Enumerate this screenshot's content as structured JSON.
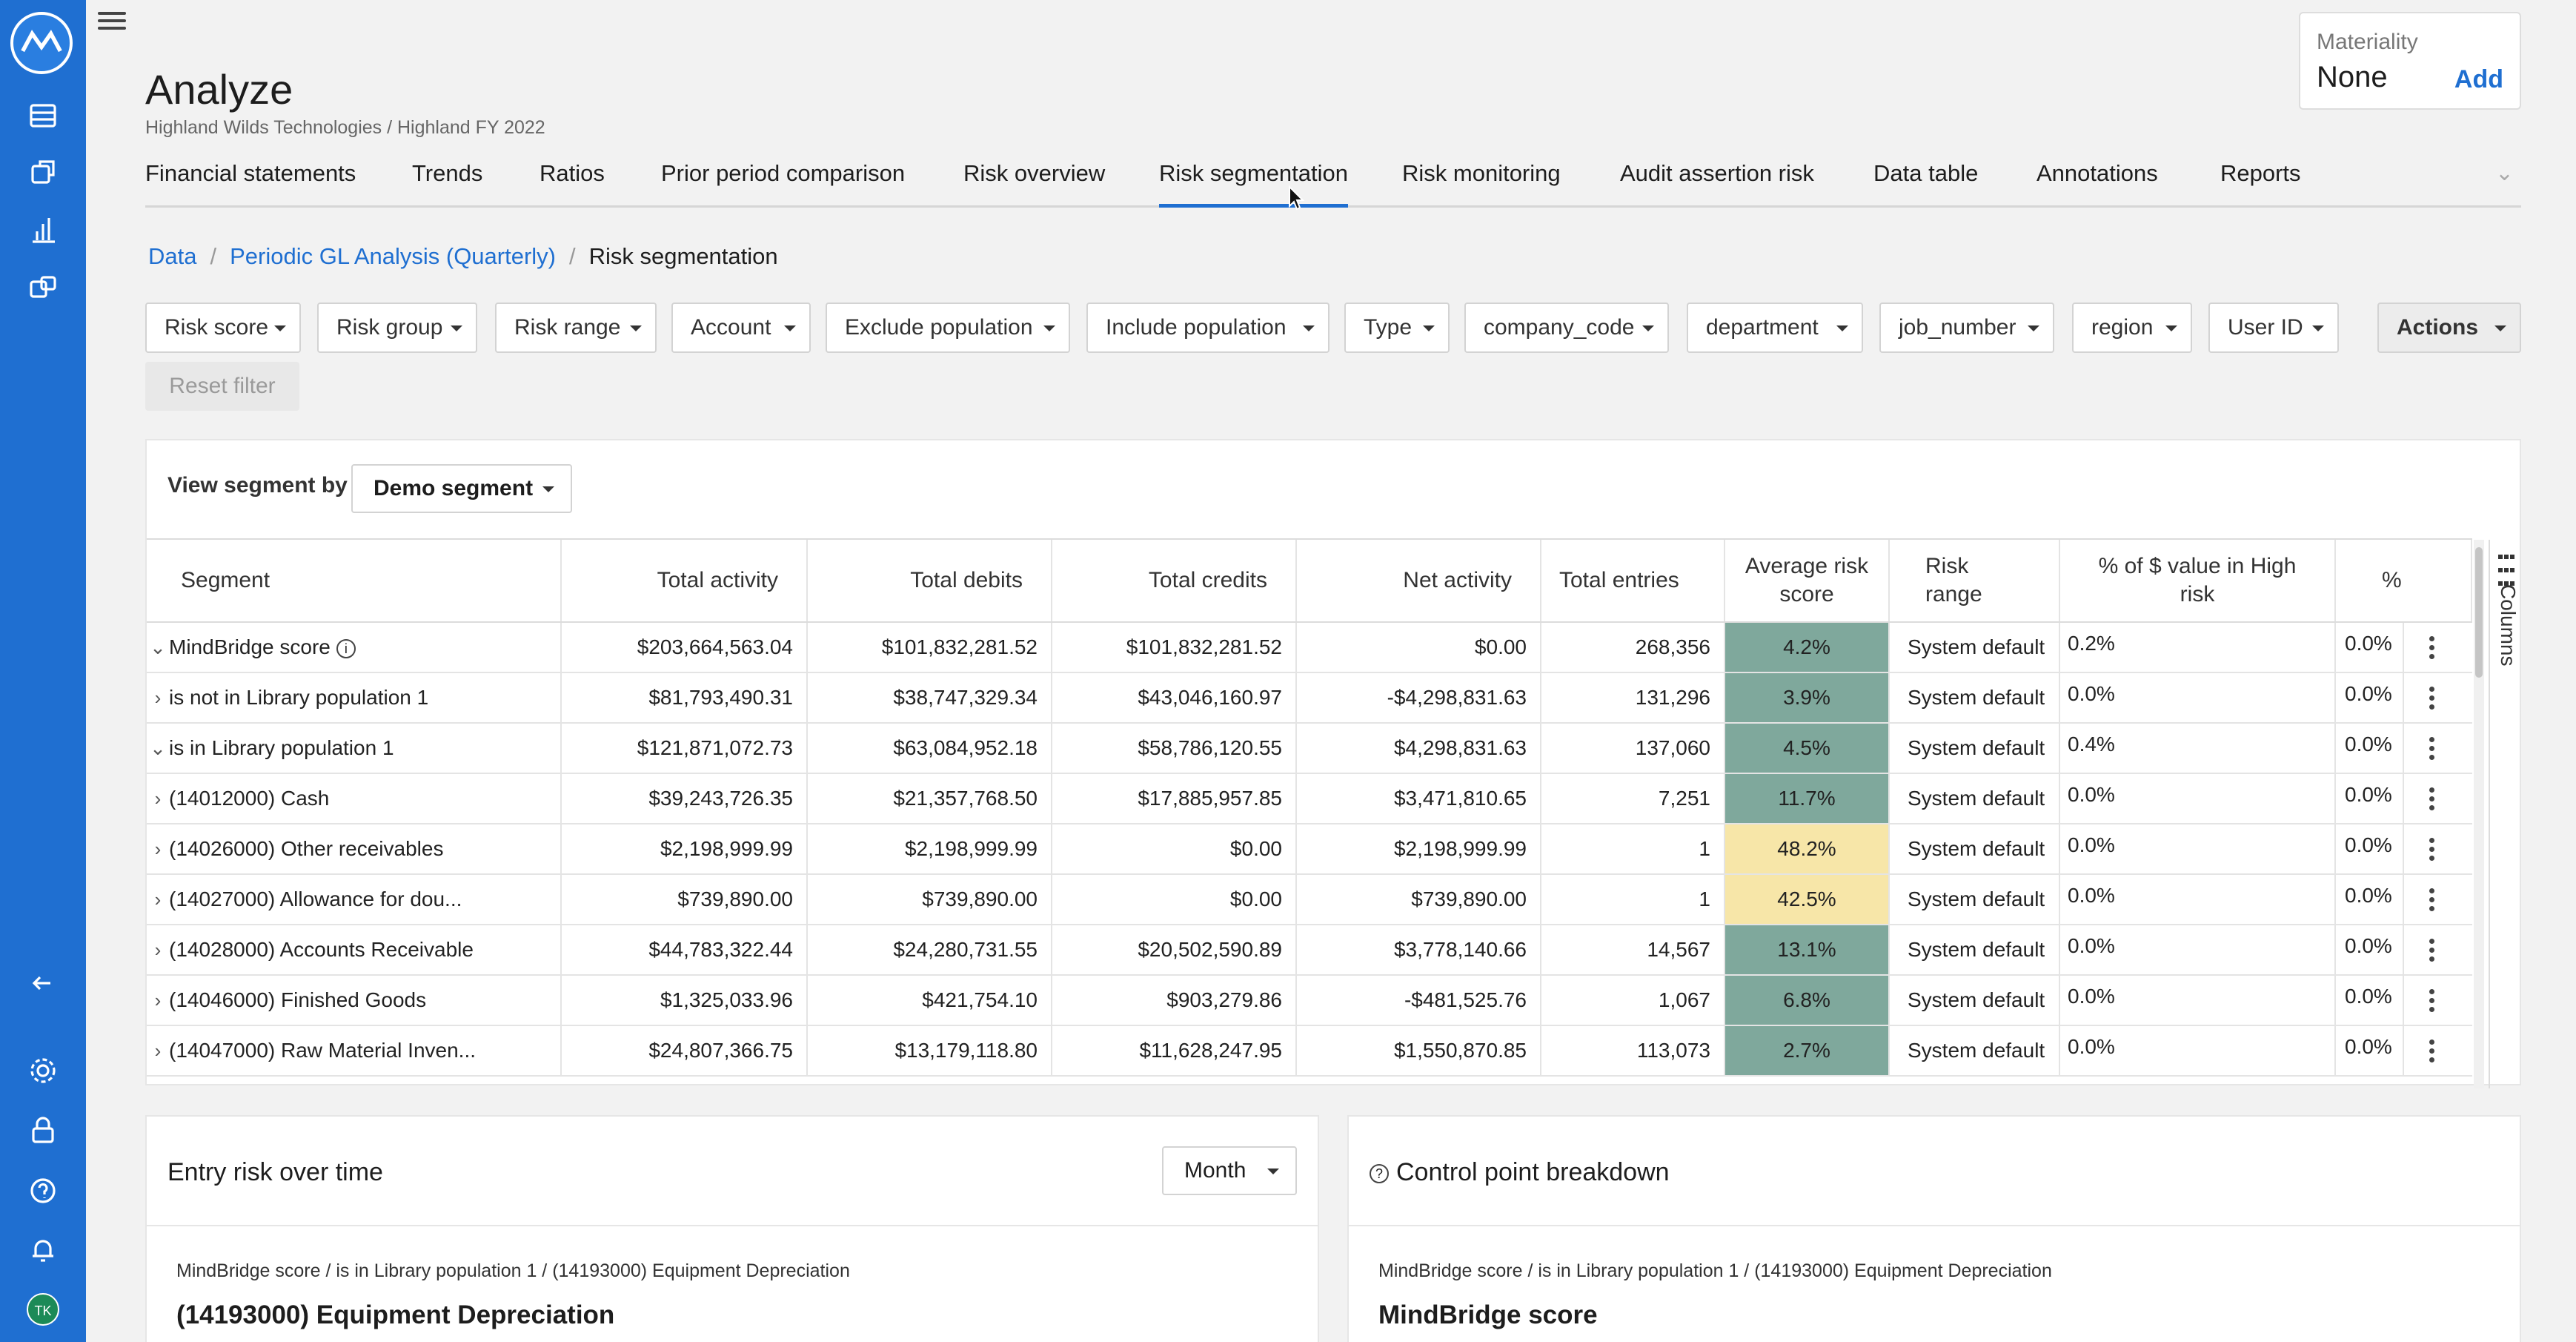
{
  "app": {
    "title": "Analyze",
    "subtitle": "Highland Wilds Technologies / Highland FY 2022",
    "accent_color": "#1f6fd1"
  },
  "rail": {
    "top_icons": [
      "database-icon",
      "box-icon",
      "bar-chart-icon",
      "workflow-icon"
    ],
    "bottom_icons": [
      "collapse-arrow-icon",
      "gear-icon",
      "lock-icon",
      "help-icon",
      "bell-icon"
    ],
    "avatar": "TK"
  },
  "materiality": {
    "label": "Materiality",
    "value": "None",
    "add": "Add"
  },
  "tabs": [
    "Financial statements",
    "Trends",
    "Ratios",
    "Prior period comparison",
    "Risk overview",
    "Risk segmentation",
    "Risk monitoring",
    "Audit assertion risk",
    "Data table",
    "Annotations",
    "Reports"
  ],
  "active_tab": "Risk segmentation",
  "breadcrumb": {
    "items": [
      "Data",
      "Periodic GL Analysis (Quarterly)"
    ],
    "current": "Risk segmentation"
  },
  "filters": [
    "Risk score",
    "Risk group",
    "Risk range",
    "Account",
    "Exclude population",
    "Include population",
    "Type",
    "company_code",
    "department",
    "job_number",
    "region",
    "User ID"
  ],
  "actions_label": "Actions",
  "reset_label": "Reset filter",
  "segment": {
    "label": "View segment by",
    "value": "Demo segment"
  },
  "table": {
    "headers": [
      "Segment",
      "Total activity",
      "Total debits",
      "Total credits",
      "Net activity",
      "Total entries",
      "Average risk score",
      "Risk range",
      "% of $ value in High risk",
      "%"
    ],
    "rows": [
      {
        "indent": 0,
        "expander": "⌄",
        "segment": "MindBridge score",
        "info": true,
        "activity": "$203,664,563.04",
        "debits": "$101,832,281.52",
        "credits": "$101,832,281.52",
        "net": "$0.00",
        "entries": "268,356",
        "risk": "4.2%",
        "risk_level": "green",
        "range": "System default",
        "high": "0.2%",
        "pct": "0.0%"
      },
      {
        "indent": 1,
        "expander": "›",
        "segment": "is not in Library population 1",
        "info": false,
        "activity": "$81,793,490.31",
        "debits": "$38,747,329.34",
        "credits": "$43,046,160.97",
        "net": "-$4,298,831.63",
        "entries": "131,296",
        "risk": "3.9%",
        "risk_level": "green",
        "range": "System default",
        "high": "0.0%",
        "pct": "0.0%"
      },
      {
        "indent": 1,
        "expander": "⌄",
        "segment": "is in Library population 1",
        "info": false,
        "activity": "$121,871,072.73",
        "debits": "$63,084,952.18",
        "credits": "$58,786,120.55",
        "net": "$4,298,831.63",
        "entries": "137,060",
        "risk": "4.5%",
        "risk_level": "green",
        "range": "System default",
        "high": "0.4%",
        "pct": "0.0%"
      },
      {
        "indent": 2,
        "expander": "›",
        "segment": "(14012000) Cash",
        "info": false,
        "activity": "$39,243,726.35",
        "debits": "$21,357,768.50",
        "credits": "$17,885,957.85",
        "net": "$3,471,810.65",
        "entries": "7,251",
        "risk": "11.7%",
        "risk_level": "green",
        "range": "System default",
        "high": "0.0%",
        "pct": "0.0%"
      },
      {
        "indent": 2,
        "expander": "›",
        "segment": "(14026000) Other receivables",
        "info": false,
        "activity": "$2,198,999.99",
        "debits": "$2,198,999.99",
        "credits": "$0.00",
        "net": "$2,198,999.99",
        "entries": "1",
        "risk": "48.2%",
        "risk_level": "yellow",
        "range": "System default",
        "high": "0.0%",
        "pct": "0.0%"
      },
      {
        "indent": 2,
        "expander": "›",
        "segment": "(14027000) Allowance for dou...",
        "info": false,
        "activity": "$739,890.00",
        "debits": "$739,890.00",
        "credits": "$0.00",
        "net": "$739,890.00",
        "entries": "1",
        "risk": "42.5%",
        "risk_level": "yellow",
        "range": "System default",
        "high": "0.0%",
        "pct": "0.0%"
      },
      {
        "indent": 2,
        "expander": "›",
        "segment": "(14028000) Accounts Receivable",
        "info": false,
        "activity": "$44,783,322.44",
        "debits": "$24,280,731.55",
        "credits": "$20,502,590.89",
        "net": "$3,778,140.66",
        "entries": "14,567",
        "risk": "13.1%",
        "risk_level": "green",
        "range": "System default",
        "high": "0.0%",
        "pct": "0.0%"
      },
      {
        "indent": 2,
        "expander": "›",
        "segment": "(14046000) Finished Goods",
        "info": false,
        "activity": "$1,325,033.96",
        "debits": "$421,754.10",
        "credits": "$903,279.86",
        "net": "-$481,525.76",
        "entries": "1,067",
        "risk": "6.8%",
        "risk_level": "green",
        "range": "System default",
        "high": "0.0%",
        "pct": "0.0%"
      },
      {
        "indent": 2,
        "expander": "›",
        "segment": "(14047000) Raw Material Inven...",
        "info": false,
        "activity": "$24,807,366.75",
        "debits": "$13,179,118.80",
        "credits": "$11,628,247.95",
        "net": "$1,550,870.85",
        "entries": "113,073",
        "risk": "2.7%",
        "risk_level": "green",
        "range": "System default",
        "high": "0.0%",
        "pct": "0.0%"
      }
    ],
    "risk_colors": {
      "green": "#7fa89c",
      "yellow": "#f7e6a8"
    },
    "columns_label": "Columns"
  },
  "entry_risk": {
    "title": "Entry risk over time",
    "period": "Month",
    "path": "MindBridge score / is in Library population 1 / (14193000) Equipment Depreciation",
    "heading": "(14193000) Equipment Depreciation"
  },
  "control_point": {
    "title": "Control point breakdown",
    "path": "MindBridge score / is in Library population 1 / (14193000) Equipment Depreciation",
    "heading": "MindBridge score"
  }
}
